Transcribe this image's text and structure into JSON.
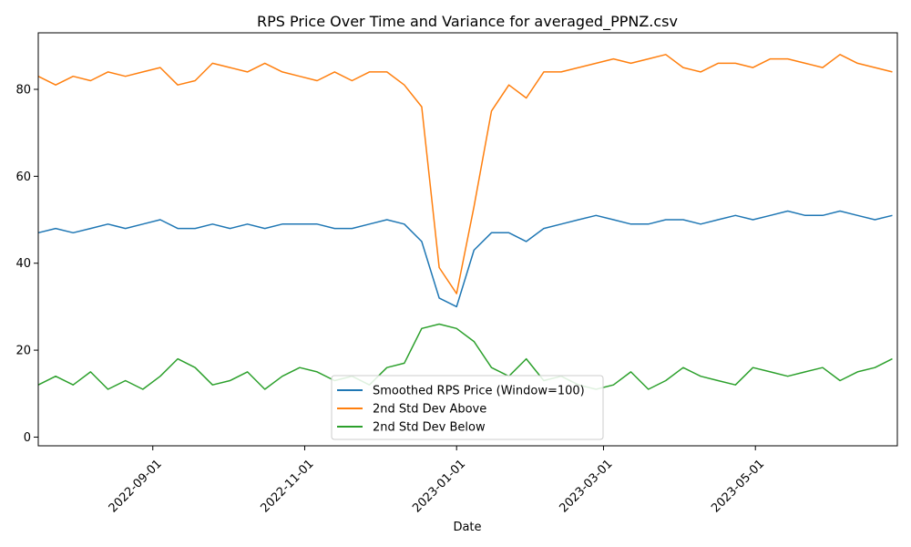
{
  "chart_data": {
    "type": "line",
    "title": "RPS Price Over Time and Variance for averaged_PPNZ.csv",
    "xlabel": "Date",
    "ylabel": "",
    "xlim": [
      "2022-07-17",
      "2023-06-27"
    ],
    "ylim": [
      -2,
      93
    ],
    "x_ticks": [
      "2022-09-01",
      "2022-11-01",
      "2023-01-01",
      "2023-03-01",
      "2023-05-01"
    ],
    "y_ticks": [
      0,
      20,
      40,
      60,
      80
    ],
    "grid": false,
    "legend_position": "lower-center",
    "series": [
      {
        "name": "Smoothed RPS Price (Window=100)",
        "color": "#1f77b4",
        "x": [
          "2022-07-17",
          "2022-07-24",
          "2022-07-31",
          "2022-08-07",
          "2022-08-14",
          "2022-08-21",
          "2022-08-28",
          "2022-09-04",
          "2022-09-11",
          "2022-09-18",
          "2022-09-25",
          "2022-10-02",
          "2022-10-09",
          "2022-10-16",
          "2022-10-23",
          "2022-10-30",
          "2022-11-06",
          "2022-11-13",
          "2022-11-20",
          "2022-11-27",
          "2022-12-04",
          "2022-12-11",
          "2022-12-18",
          "2022-12-25",
          "2023-01-01",
          "2023-01-08",
          "2023-01-15",
          "2023-01-22",
          "2023-01-29",
          "2023-02-05",
          "2023-02-12",
          "2023-02-19",
          "2023-02-26",
          "2023-03-05",
          "2023-03-12",
          "2023-03-19",
          "2023-03-26",
          "2023-04-02",
          "2023-04-09",
          "2023-04-16",
          "2023-04-23",
          "2023-04-30",
          "2023-05-07",
          "2023-05-14",
          "2023-05-21",
          "2023-05-28",
          "2023-06-04",
          "2023-06-11",
          "2023-06-18",
          "2023-06-25"
        ],
        "y": [
          47,
          48,
          47,
          48,
          49,
          48,
          49,
          50,
          48,
          48,
          49,
          48,
          49,
          48,
          49,
          49,
          49,
          48,
          48,
          49,
          50,
          49,
          45,
          32,
          30,
          43,
          47,
          47,
          45,
          48,
          49,
          50,
          51,
          50,
          49,
          49,
          50,
          50,
          49,
          50,
          51,
          50,
          51,
          52,
          51,
          51,
          52,
          51,
          50,
          51
        ]
      },
      {
        "name": "2nd Std Dev Above",
        "color": "#ff7f0e",
        "x": [
          "2022-07-17",
          "2022-07-24",
          "2022-07-31",
          "2022-08-07",
          "2022-08-14",
          "2022-08-21",
          "2022-08-28",
          "2022-09-04",
          "2022-09-11",
          "2022-09-18",
          "2022-09-25",
          "2022-10-02",
          "2022-10-09",
          "2022-10-16",
          "2022-10-23",
          "2022-10-30",
          "2022-11-06",
          "2022-11-13",
          "2022-11-20",
          "2022-11-27",
          "2022-12-04",
          "2022-12-11",
          "2022-12-18",
          "2022-12-25",
          "2023-01-01",
          "2023-01-08",
          "2023-01-15",
          "2023-01-22",
          "2023-01-29",
          "2023-02-05",
          "2023-02-12",
          "2023-02-19",
          "2023-02-26",
          "2023-03-05",
          "2023-03-12",
          "2023-03-19",
          "2023-03-26",
          "2023-04-02",
          "2023-04-09",
          "2023-04-16",
          "2023-04-23",
          "2023-04-30",
          "2023-05-07",
          "2023-05-14",
          "2023-05-21",
          "2023-05-28",
          "2023-06-04",
          "2023-06-11",
          "2023-06-18",
          "2023-06-25"
        ],
        "y": [
          83,
          81,
          83,
          82,
          84,
          83,
          84,
          85,
          81,
          82,
          86,
          85,
          84,
          86,
          84,
          83,
          82,
          84,
          82,
          84,
          84,
          81,
          76,
          39,
          33,
          53,
          75,
          81,
          78,
          84,
          84,
          85,
          86,
          87,
          86,
          87,
          88,
          85,
          84,
          86,
          86,
          85,
          87,
          87,
          86,
          85,
          88,
          86,
          85,
          84
        ]
      },
      {
        "name": "2nd Std Dev Below",
        "color": "#2ca02c",
        "x": [
          "2022-07-17",
          "2022-07-24",
          "2022-07-31",
          "2022-08-07",
          "2022-08-14",
          "2022-08-21",
          "2022-08-28",
          "2022-09-04",
          "2022-09-11",
          "2022-09-18",
          "2022-09-25",
          "2022-10-02",
          "2022-10-09",
          "2022-10-16",
          "2022-10-23",
          "2022-10-30",
          "2022-11-06",
          "2022-11-13",
          "2022-11-20",
          "2022-11-27",
          "2022-12-04",
          "2022-12-11",
          "2022-12-18",
          "2022-12-25",
          "2023-01-01",
          "2023-01-08",
          "2023-01-15",
          "2023-01-22",
          "2023-01-29",
          "2023-02-05",
          "2023-02-12",
          "2023-02-19",
          "2023-02-26",
          "2023-03-05",
          "2023-03-12",
          "2023-03-19",
          "2023-03-26",
          "2023-04-02",
          "2023-04-09",
          "2023-04-16",
          "2023-04-23",
          "2023-04-30",
          "2023-05-07",
          "2023-05-14",
          "2023-05-21",
          "2023-05-28",
          "2023-06-04",
          "2023-06-11",
          "2023-06-18",
          "2023-06-25"
        ],
        "y": [
          12,
          14,
          12,
          15,
          11,
          13,
          11,
          14,
          18,
          16,
          12,
          13,
          15,
          11,
          14,
          16,
          15,
          13,
          14,
          12,
          16,
          17,
          25,
          26,
          25,
          22,
          16,
          14,
          18,
          13,
          14,
          12,
          11,
          12,
          15,
          11,
          13,
          16,
          14,
          13,
          12,
          16,
          15,
          14,
          15,
          16,
          13,
          15,
          16,
          18
        ]
      }
    ]
  }
}
